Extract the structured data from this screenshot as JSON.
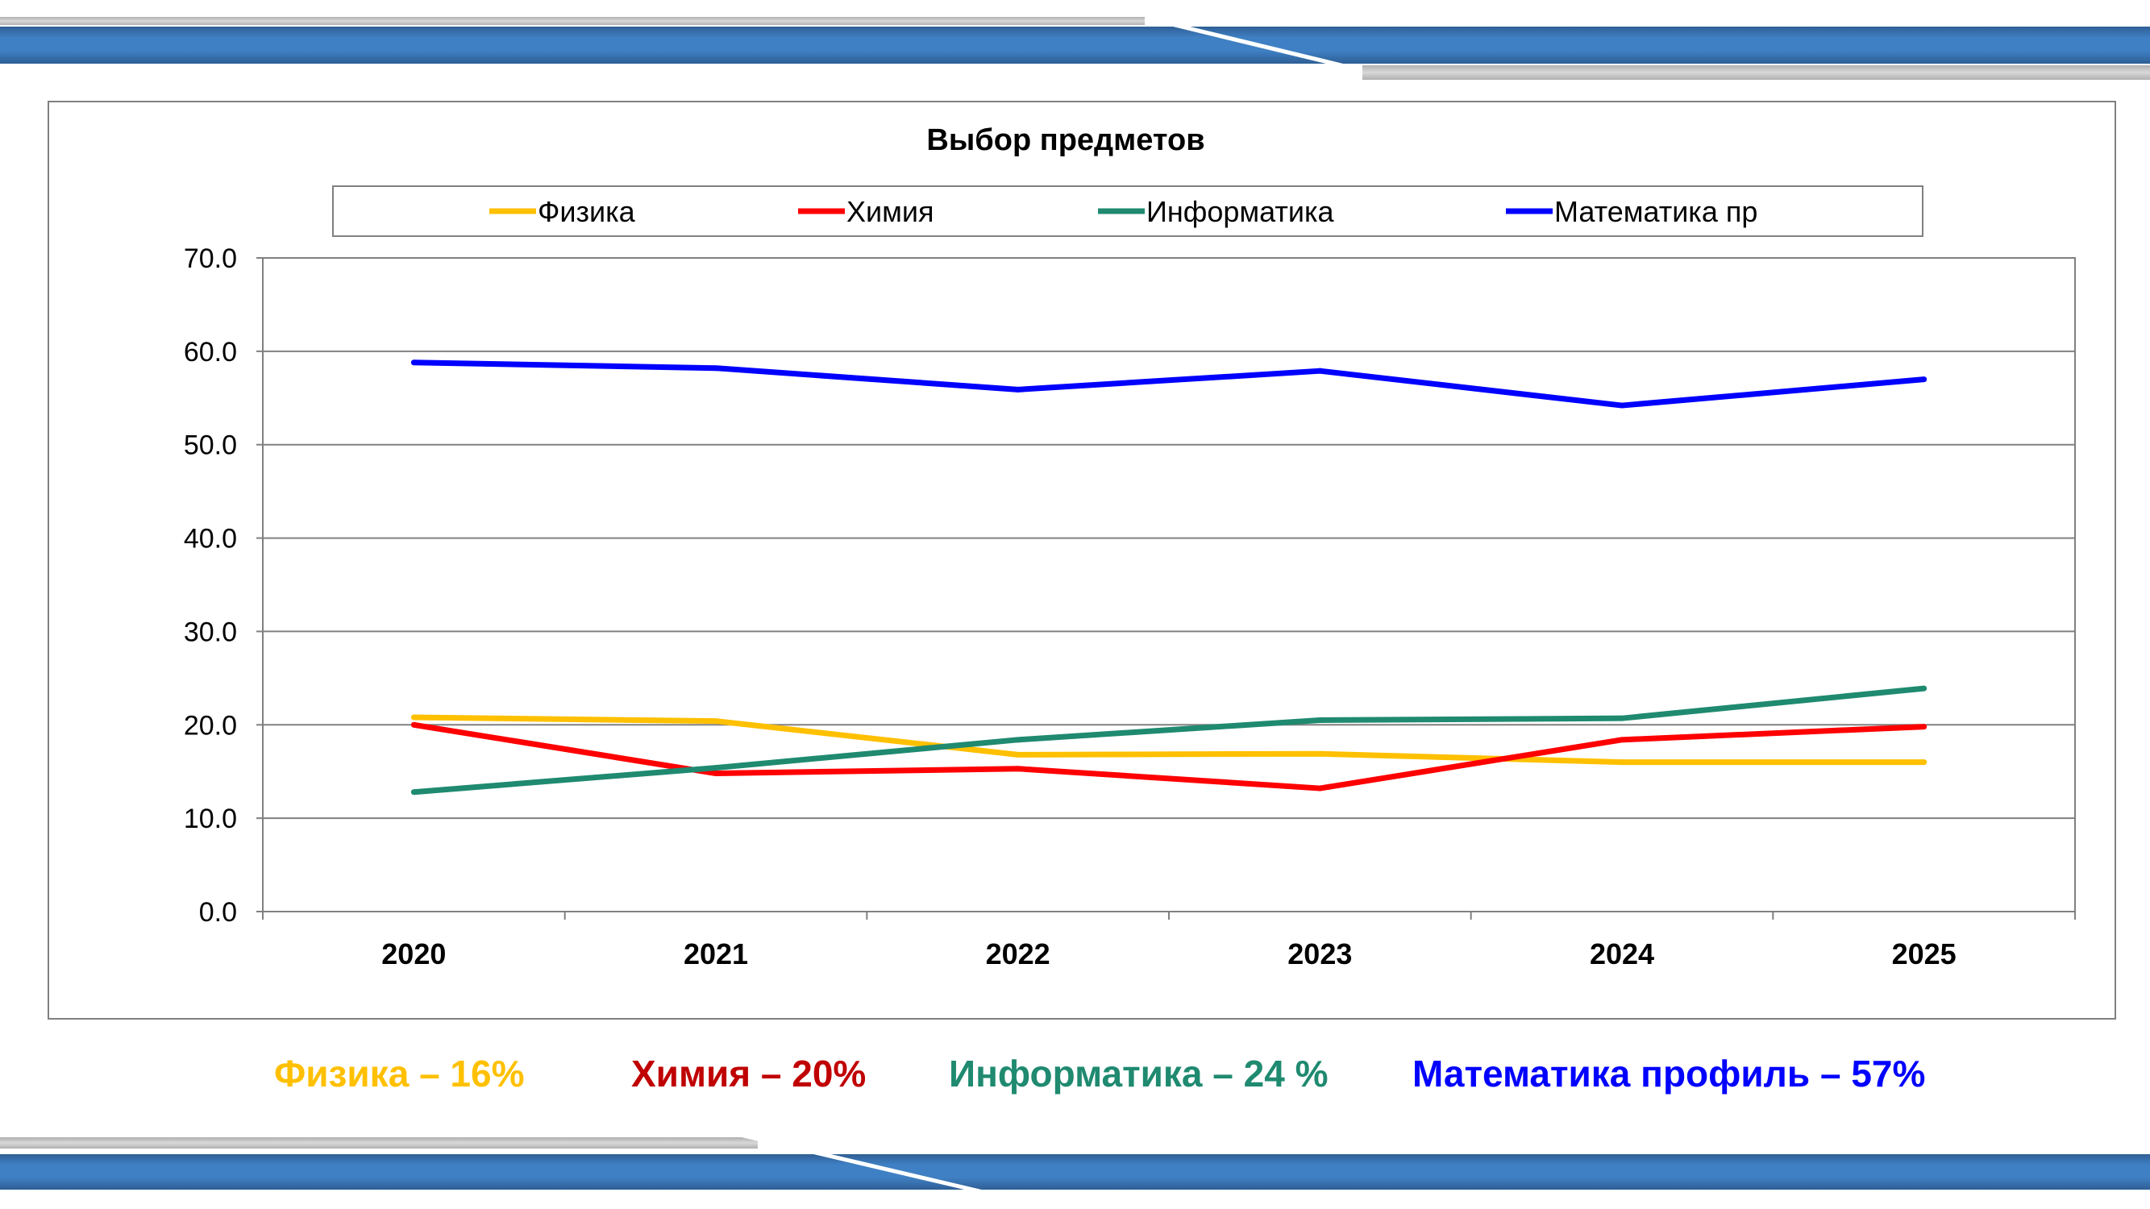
{
  "chart_data": {
    "type": "line",
    "title": "Выбор предметов",
    "categories": [
      "2020",
      "2021",
      "2022",
      "2023",
      "2024",
      "2025"
    ],
    "ylim": [
      0,
      70
    ],
    "yticks": [
      "0.0",
      "10.0",
      "20.0",
      "30.0",
      "40.0",
      "50.0",
      "60.0",
      "70.0"
    ],
    "grid": true,
    "legend_position": "top",
    "series": [
      {
        "name": "Физика",
        "color": "#FFC000",
        "values": [
          20.8,
          20.4,
          16.8,
          16.9,
          16.0,
          16.0
        ]
      },
      {
        "name": "Химия",
        "color": "#FF0000",
        "values": [
          20.0,
          14.8,
          15.3,
          13.2,
          18.4,
          19.8
        ]
      },
      {
        "name": "Информатика",
        "color": "#1F8A70",
        "values": [
          12.8,
          15.4,
          18.4,
          20.5,
          20.7,
          23.9
        ]
      },
      {
        "name": "Математика пр",
        "color": "#0000FF",
        "values": [
          58.8,
          58.2,
          55.9,
          57.9,
          54.2,
          57.0
        ]
      }
    ]
  },
  "summary": [
    {
      "text": "Физика – 16%",
      "color": "#FFC000"
    },
    {
      "text": "Химия – 20%",
      "color": "#C00000"
    },
    {
      "text": "Информатика – 24 %",
      "color": "#1F8A70"
    },
    {
      "text": "Математика профиль – 57%",
      "color": "#0000FF"
    }
  ]
}
